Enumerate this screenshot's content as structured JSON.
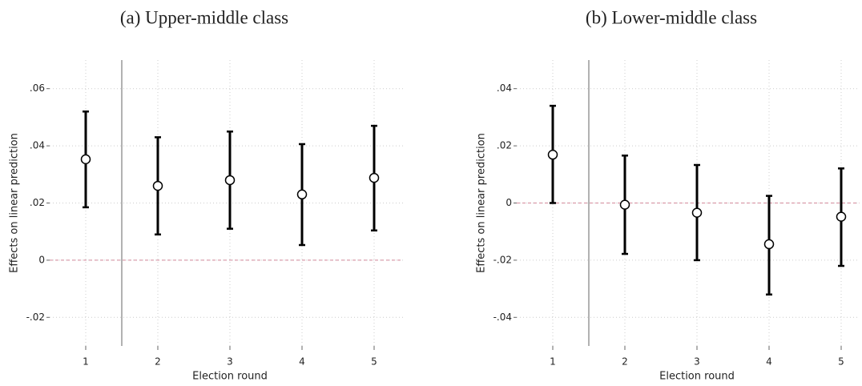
{
  "chart_data": [
    {
      "type": "errorbar",
      "title": "(a) Upper-middle class",
      "xlabel": "Election round",
      "ylabel": "Effects on linear prediction",
      "x": [
        1,
        2,
        3,
        4,
        5
      ],
      "xlim": [
        0.5,
        5.4
      ],
      "xticks": [
        1,
        2,
        3,
        4,
        5
      ],
      "ylim": [
        -0.03,
        0.07
      ],
      "yticks": [
        {
          "value": -0.02,
          "label": "-.02"
        },
        0,
        {
          "value": 0.02,
          "label": ".02"
        },
        {
          "value": 0.04,
          "label": ".04"
        },
        {
          "value": 0.06,
          "label": ".06"
        }
      ],
      "grid": true,
      "vline": 1.5,
      "vline_color": "#999999",
      "hline": 0,
      "hline_color": "#d4899a",
      "series": [
        {
          "color": "#000000",
          "values": [
            0.0353,
            0.026,
            0.028,
            0.023,
            0.0288
          ],
          "ci_low": [
            0.0185,
            0.009,
            0.011,
            0.0053,
            0.0104
          ],
          "ci_high": [
            0.052,
            0.043,
            0.045,
            0.0406,
            0.047
          ]
        }
      ]
    },
    {
      "type": "errorbar",
      "title": "(b) Lower-middle class",
      "xlabel": "Election round",
      "ylabel": "Effects on linear prediction",
      "x": [
        1,
        2,
        3,
        4,
        5
      ],
      "xlim": [
        0.5,
        5.25
      ],
      "xticks": [
        1,
        2,
        3,
        4,
        5
      ],
      "ylim": [
        -0.05,
        0.05
      ],
      "yticks": [
        {
          "value": -0.04,
          "label": "-.04"
        },
        {
          "value": -0.02,
          "label": "-.02"
        },
        0,
        {
          "value": 0.02,
          "label": ".02"
        },
        {
          "value": 0.04,
          "label": ".04"
        }
      ],
      "grid": true,
      "vline": 1.5,
      "vline_color": "#999999",
      "hline": 0,
      "hline_color": "#d4899a",
      "series": [
        {
          "color": "#000000",
          "values": [
            0.0169,
            -0.0006,
            -0.0034,
            -0.0144,
            -0.0048
          ],
          "ci_low": [
            0.0,
            -0.0178,
            -0.02,
            -0.032,
            -0.022
          ],
          "ci_high": [
            0.034,
            0.0166,
            0.0133,
            0.0025,
            0.0121
          ]
        }
      ]
    }
  ]
}
